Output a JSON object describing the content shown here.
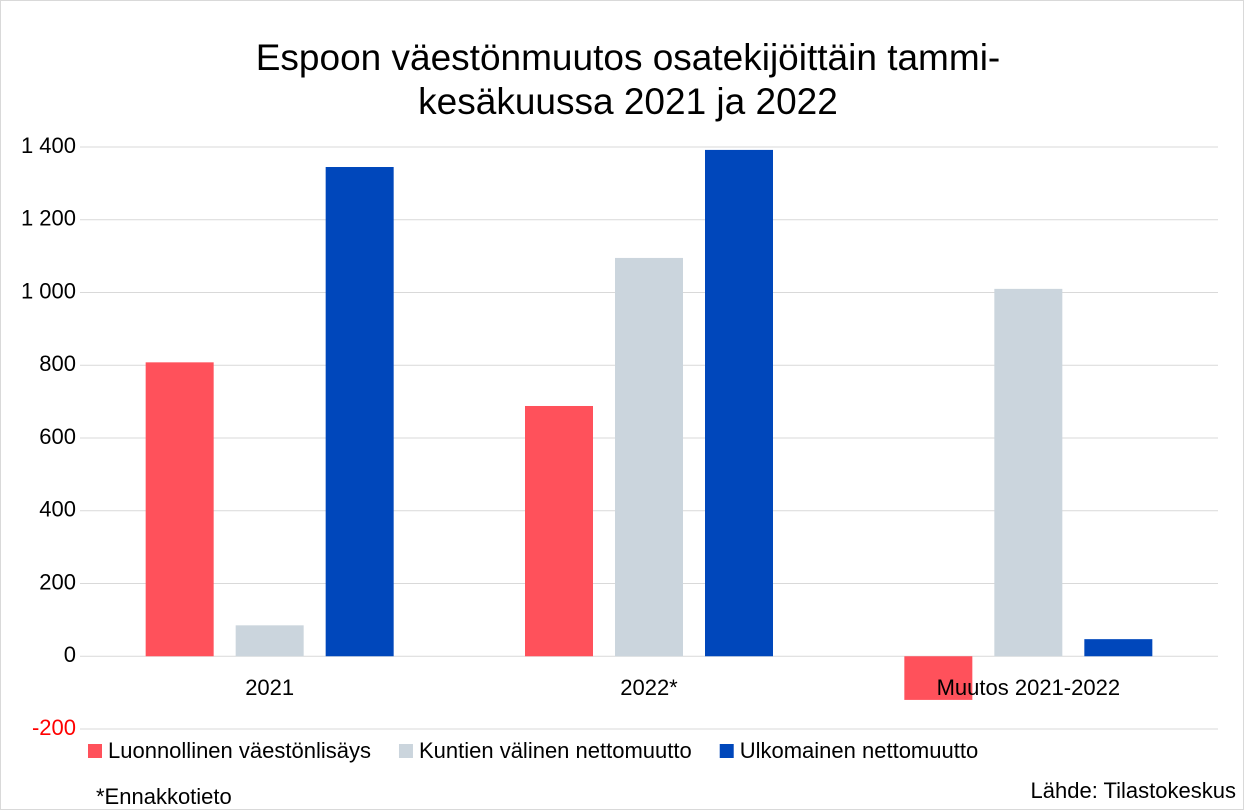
{
  "chart_data": {
    "type": "bar",
    "title": "Espoon väestönmuutos osatekijöittäin tammi-kesäkuussa 2021 ja 2022",
    "categories": [
      "2021",
      "2022*",
      "Muutos 2021-2022"
    ],
    "series": [
      {
        "name": "Luonnollinen väestönlisäys",
        "color": "#ff515b",
        "values": [
          808,
          688,
          -120
        ]
      },
      {
        "name": "Kuntien välinen nettomuutto",
        "color": "#cbd5dd",
        "values": [
          85,
          1095,
          1010
        ]
      },
      {
        "name": "Ulkomainen nettomuutto",
        "color": "#0047bb",
        "values": [
          1345,
          1392,
          47
        ]
      }
    ],
    "ylim": [
      -200,
      1400
    ],
    "yticks": [
      {
        "value": -200,
        "label": "-200"
      },
      0,
      200,
      400,
      600,
      800,
      {
        "value": 1000,
        "label": "1 000"
      },
      {
        "value": 1200,
        "label": "1 200"
      },
      {
        "value": 1400,
        "label": "1 400"
      }
    ],
    "negative_tick_color": "#ff0000",
    "grid": true,
    "legend": "bottom",
    "footnote": "*Ennakkotieto",
    "source": "Lähde:  Tilastokeskus"
  }
}
